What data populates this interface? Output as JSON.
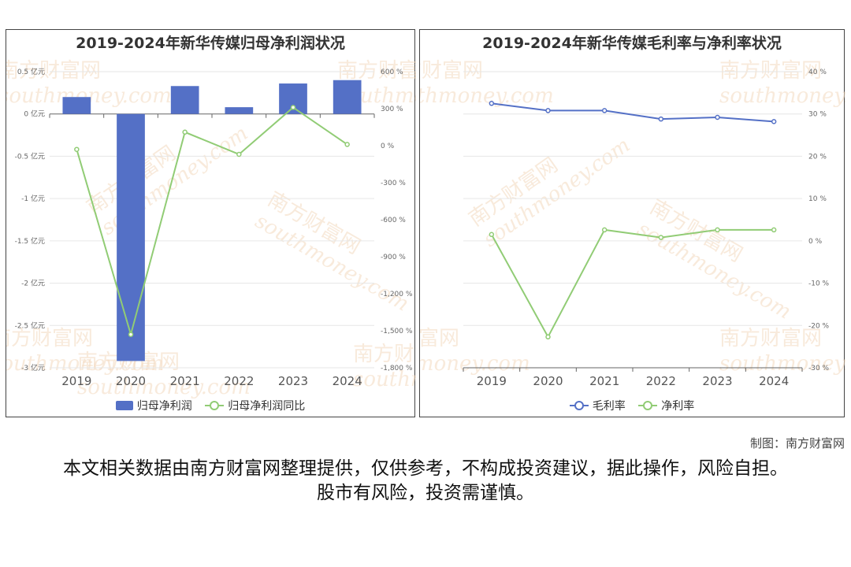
{
  "watermark": {
    "cn": "南方财富网",
    "en": "southmoney.com"
  },
  "source_credit": "制图：南方财富网",
  "disclaimer": "本文相关数据由南方财富网整理提供，仅供参考，不构成投资建议，据此操作，风险自担。股市有风险，投资需谨慎。",
  "colors": {
    "bar": "#5470c6",
    "blue_line": "#5470c6",
    "green_line": "#91cc75",
    "grid": "#e6e6e6"
  },
  "chart_data": [
    {
      "type": "bar",
      "title": "2019-2024年新华传媒归母净利润状况",
      "categories": [
        "2019",
        "2020",
        "2021",
        "2022",
        "2023",
        "2024"
      ],
      "series": [
        {
          "name": "归母净利润",
          "type": "bar",
          "axis": "left",
          "values": [
            0.2,
            -2.92,
            0.33,
            0.08,
            0.36,
            0.4
          ]
        },
        {
          "name": "归母净利润同比",
          "type": "line",
          "axis": "right",
          "values": [
            -30,
            -1530,
            110,
            -70,
            310,
            10
          ]
        }
      ],
      "y_left": {
        "ticks": [
          0.5,
          0,
          -0.5,
          -1,
          -1.5,
          -2,
          -2.5,
          -3
        ],
        "tick_labels": [
          "0.5 亿元",
          "0 亿元",
          "-0.5 亿元",
          "-1 亿元",
          "-1.5 亿元",
          "-2 亿元",
          "-2.5 亿元",
          "-3 亿元"
        ],
        "ylim": [
          -3,
          0.5
        ]
      },
      "y_right": {
        "ticks": [
          600,
          300,
          0,
          -300,
          -600,
          -900,
          -1200,
          -1500,
          -1800
        ],
        "tick_labels": [
          "600 %",
          "300 %",
          "0 %",
          "-300 %",
          "-600 %",
          "-900 %",
          "-1,200 %",
          "-1,500 %",
          "-1,800 %"
        ],
        "ylim": [
          -1800,
          600
        ]
      },
      "legend": "bottom"
    },
    {
      "type": "line",
      "title": "2019-2024年新华传媒毛利率与净利率状况",
      "categories": [
        "2019",
        "2020",
        "2021",
        "2022",
        "2023",
        "2024"
      ],
      "series": [
        {
          "name": "毛利率",
          "values": [
            32.5,
            30.8,
            30.8,
            28.8,
            29.2,
            28.2
          ]
        },
        {
          "name": "净利率",
          "values": [
            1.5,
            -22.7,
            2.6,
            0.8,
            2.6,
            2.6
          ]
        }
      ],
      "y_right": {
        "ticks": [
          40,
          30,
          20,
          10,
          0,
          -10,
          -20,
          -30
        ],
        "tick_labels": [
          "40 %",
          "30 %",
          "20 %",
          "10 %",
          "0 %",
          "-10 %",
          "-20 %",
          "-30 %"
        ],
        "ylim": [
          -30,
          40
        ]
      },
      "legend": "bottom"
    }
  ]
}
